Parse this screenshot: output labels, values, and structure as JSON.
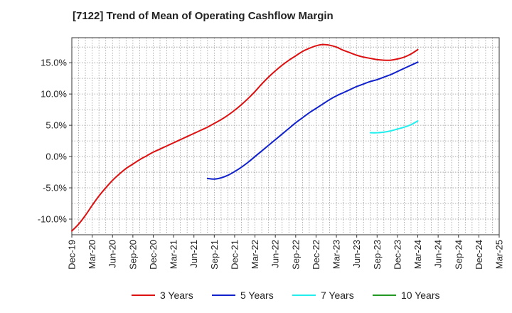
{
  "chart_data": {
    "type": "line",
    "title": "[7122]  Trend of Mean of Operating Cashflow Margin",
    "xlabel": "",
    "ylabel": "",
    "x_range": [
      "2019-12",
      "2025-03"
    ],
    "ylim": [
      -12.5,
      19
    ],
    "grid": true,
    "legend_position": "bottom",
    "y_ticks": [
      {
        "value": 15,
        "label": "15.0%"
      },
      {
        "value": 10,
        "label": "10.0%"
      },
      {
        "value": 5,
        "label": "5.0%"
      },
      {
        "value": 0,
        "label": "0.0%"
      },
      {
        "value": -5,
        "label": "-5.0%"
      },
      {
        "value": -10,
        "label": "-10.0%"
      }
    ],
    "x_ticks": [
      {
        "date": "2019-12",
        "label": "Dec-19"
      },
      {
        "date": "2020-03",
        "label": "Mar-20"
      },
      {
        "date": "2020-06",
        "label": "Jun-20"
      },
      {
        "date": "2020-09",
        "label": "Sep-20"
      },
      {
        "date": "2020-12",
        "label": "Dec-20"
      },
      {
        "date": "2021-03",
        "label": "Mar-21"
      },
      {
        "date": "2021-06",
        "label": "Jun-21"
      },
      {
        "date": "2021-09",
        "label": "Sep-21"
      },
      {
        "date": "2021-12",
        "label": "Dec-21"
      },
      {
        "date": "2022-03",
        "label": "Mar-22"
      },
      {
        "date": "2022-06",
        "label": "Jun-22"
      },
      {
        "date": "2022-09",
        "label": "Sep-22"
      },
      {
        "date": "2022-12",
        "label": "Dec-22"
      },
      {
        "date": "2023-03",
        "label": "Mar-23"
      },
      {
        "date": "2023-06",
        "label": "Jun-23"
      },
      {
        "date": "2023-09",
        "label": "Sep-23"
      },
      {
        "date": "2023-12",
        "label": "Dec-23"
      },
      {
        "date": "2024-03",
        "label": "Mar-24"
      },
      {
        "date": "2024-06",
        "label": "Jun-24"
      },
      {
        "date": "2024-09",
        "label": "Sep-24"
      },
      {
        "date": "2024-12",
        "label": "Dec-24"
      },
      {
        "date": "2025-03",
        "label": "Mar-25"
      }
    ],
    "series": [
      {
        "name": "3 Years",
        "color": "#dd1111",
        "points": [
          [
            "2019-12",
            -11.9
          ],
          [
            "2020-01",
            -10.8
          ],
          [
            "2020-02",
            -9.4
          ],
          [
            "2020-03",
            -7.8
          ],
          [
            "2020-04",
            -6.3
          ],
          [
            "2020-05",
            -5.0
          ],
          [
            "2020-06",
            -3.8
          ],
          [
            "2020-07",
            -2.8
          ],
          [
            "2020-08",
            -1.9
          ],
          [
            "2020-09",
            -1.2
          ],
          [
            "2020-10",
            -0.5
          ],
          [
            "2020-11",
            0.1
          ],
          [
            "2020-12",
            0.7
          ],
          [
            "2021-01",
            1.2
          ],
          [
            "2021-02",
            1.7
          ],
          [
            "2021-03",
            2.2
          ],
          [
            "2021-04",
            2.7
          ],
          [
            "2021-05",
            3.2
          ],
          [
            "2021-06",
            3.7
          ],
          [
            "2021-07",
            4.2
          ],
          [
            "2021-08",
            4.7
          ],
          [
            "2021-09",
            5.3
          ],
          [
            "2021-10",
            5.9
          ],
          [
            "2021-11",
            6.6
          ],
          [
            "2021-12",
            7.4
          ],
          [
            "2022-01",
            8.3
          ],
          [
            "2022-02",
            9.3
          ],
          [
            "2022-03",
            10.4
          ],
          [
            "2022-04",
            11.6
          ],
          [
            "2022-05",
            12.7
          ],
          [
            "2022-06",
            13.7
          ],
          [
            "2022-07",
            14.6
          ],
          [
            "2022-08",
            15.4
          ],
          [
            "2022-09",
            16.1
          ],
          [
            "2022-10",
            16.8
          ],
          [
            "2022-11",
            17.3
          ],
          [
            "2022-12",
            17.7
          ],
          [
            "2023-01",
            17.9
          ],
          [
            "2023-02",
            17.8
          ],
          [
            "2023-03",
            17.5
          ],
          [
            "2023-04",
            17.0
          ],
          [
            "2023-05",
            16.6
          ],
          [
            "2023-06",
            16.2
          ],
          [
            "2023-07",
            15.9
          ],
          [
            "2023-08",
            15.7
          ],
          [
            "2023-09",
            15.5
          ],
          [
            "2023-10",
            15.4
          ],
          [
            "2023-11",
            15.4
          ],
          [
            "2023-12",
            15.6
          ],
          [
            "2024-01",
            15.9
          ],
          [
            "2024-02",
            16.4
          ],
          [
            "2024-03",
            17.1
          ]
        ]
      },
      {
        "name": "5 Years",
        "color": "#1122cc",
        "points": [
          [
            "2021-08",
            -3.5
          ],
          [
            "2021-09",
            -3.6
          ],
          [
            "2021-10",
            -3.4
          ],
          [
            "2021-11",
            -3.0
          ],
          [
            "2021-12",
            -2.4
          ],
          [
            "2022-01",
            -1.7
          ],
          [
            "2022-02",
            -0.9
          ],
          [
            "2022-03",
            0.0
          ],
          [
            "2022-04",
            0.9
          ],
          [
            "2022-05",
            1.8
          ],
          [
            "2022-06",
            2.7
          ],
          [
            "2022-07",
            3.6
          ],
          [
            "2022-08",
            4.5
          ],
          [
            "2022-09",
            5.4
          ],
          [
            "2022-10",
            6.2
          ],
          [
            "2022-11",
            7.0
          ],
          [
            "2022-12",
            7.7
          ],
          [
            "2023-01",
            8.4
          ],
          [
            "2023-02",
            9.1
          ],
          [
            "2023-03",
            9.7
          ],
          [
            "2023-04",
            10.2
          ],
          [
            "2023-05",
            10.7
          ],
          [
            "2023-06",
            11.2
          ],
          [
            "2023-07",
            11.6
          ],
          [
            "2023-08",
            12.0
          ],
          [
            "2023-09",
            12.3
          ],
          [
            "2023-10",
            12.7
          ],
          [
            "2023-11",
            13.1
          ],
          [
            "2023-12",
            13.6
          ],
          [
            "2024-01",
            14.1
          ],
          [
            "2024-02",
            14.6
          ],
          [
            "2024-03",
            15.1
          ]
        ]
      },
      {
        "name": "7 Years",
        "color": "#22eeee",
        "points": [
          [
            "2023-08",
            3.8
          ],
          [
            "2023-09",
            3.8
          ],
          [
            "2023-10",
            3.9
          ],
          [
            "2023-11",
            4.1
          ],
          [
            "2023-12",
            4.4
          ],
          [
            "2024-01",
            4.7
          ],
          [
            "2024-02",
            5.1
          ],
          [
            "2024-03",
            5.7
          ]
        ]
      },
      {
        "name": "10 Years",
        "color": "#229922",
        "points": []
      }
    ]
  }
}
